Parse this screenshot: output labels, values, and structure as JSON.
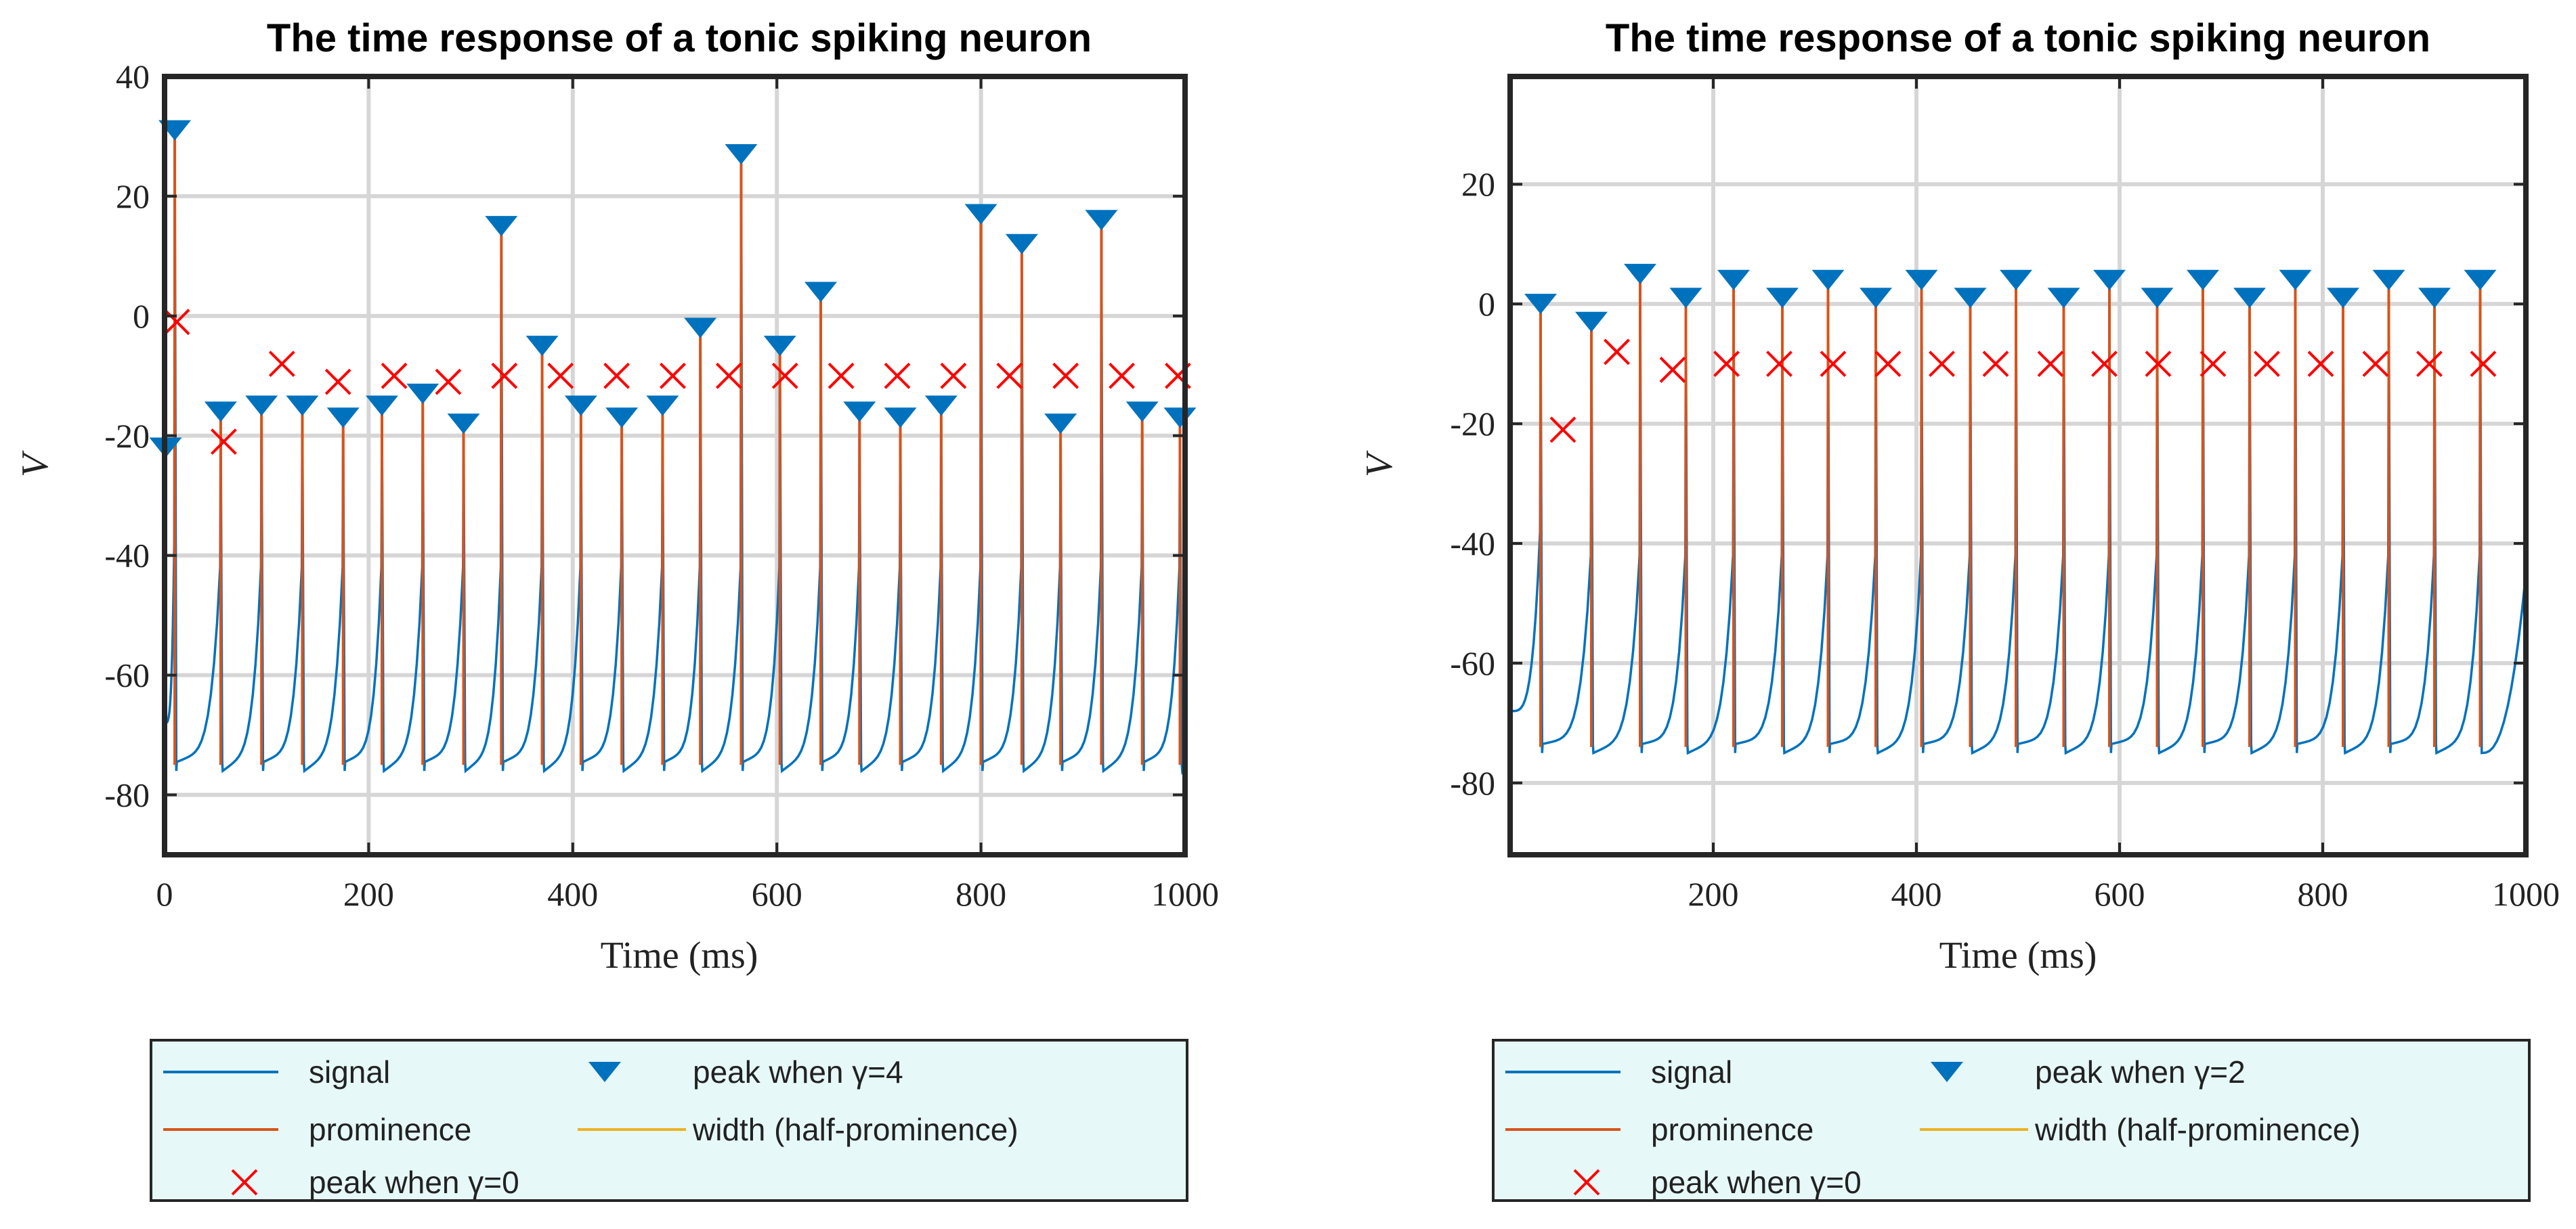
{
  "colors": {
    "signal": "#0072BD",
    "prominence": "#D95319",
    "width": "#EDB120",
    "peak_gamma0": "#FF0000",
    "peak_marker": "#0072BD",
    "legend_bg": "#E6F8F8",
    "grid": "#D6D6D6"
  },
  "chart_data": [
    {
      "type": "line",
      "title": "The time response of a tonic spiking neuron",
      "xlabel": "Time (ms)",
      "ylabel": "V",
      "xlim": [
        0,
        1000
      ],
      "ylim": [
        -90,
        40
      ],
      "xticks": [
        0,
        200,
        400,
        600,
        800,
        1000
      ],
      "yticks": [
        -80,
        -60,
        -40,
        -20,
        0,
        20,
        40
      ],
      "xtick_labels": [
        "0",
        "200",
        "400",
        "600",
        "800",
        "1000"
      ],
      "ytick_labels": [
        "-80",
        "-60",
        "-40",
        "-20",
        "0",
        "20",
        "40"
      ],
      "grid": true,
      "rest_min": -76,
      "spike_times": [
        10,
        55,
        95,
        135,
        175,
        213,
        253,
        293,
        330,
        370,
        408,
        448,
        488,
        525,
        565,
        603,
        643,
        681,
        721,
        761,
        800,
        840,
        878,
        918,
        958,
        995
      ],
      "spike_peaks": [
        31,
        -16,
        -15,
        -15,
        -17,
        -15,
        -13,
        -18,
        15,
        -5,
        -15,
        -17,
        -15,
        -2,
        27,
        -5,
        4,
        -16,
        -17,
        -15,
        17,
        12,
        -18,
        16,
        -16,
        -17
      ],
      "extra_peak_marker": {
        "t": 1,
        "v": -22
      },
      "peaks_gamma0": [
        {
          "t": 12,
          "v": -1
        },
        {
          "t": 58,
          "v": -21
        },
        {
          "t": 115,
          "v": -8
        },
        {
          "t": 170,
          "v": -11
        },
        {
          "t": 225,
          "v": -10
        },
        {
          "t": 278,
          "v": -11
        },
        {
          "t": 333,
          "v": -10
        },
        {
          "t": 388,
          "v": -10
        },
        {
          "t": 443,
          "v": -10
        },
        {
          "t": 498,
          "v": -10
        },
        {
          "t": 553,
          "v": -10
        },
        {
          "t": 608,
          "v": -10
        },
        {
          "t": 663,
          "v": -10
        },
        {
          "t": 718,
          "v": -10
        },
        {
          "t": 773,
          "v": -10
        },
        {
          "t": 828,
          "v": -10
        },
        {
          "t": 883,
          "v": -10
        },
        {
          "t": 938,
          "v": -10
        },
        {
          "t": 993,
          "v": -10
        }
      ],
      "legend": [
        "signal",
        "peak when γ=4",
        "prominence",
        "width (half-prominence)",
        "peak when γ=0"
      ],
      "legend_position": "below"
    },
    {
      "type": "line",
      "title": "The time response of a tonic spiking neuron",
      "xlabel": "Time (ms)",
      "ylabel": "V",
      "xlim": [
        0,
        1000
      ],
      "ylim": [
        -92,
        38
      ],
      "xticks": [
        200,
        400,
        600,
        800,
        1000
      ],
      "yticks": [
        -80,
        -60,
        -40,
        -20,
        0,
        20
      ],
      "xtick_labels": [
        "200",
        "400",
        "600",
        "800",
        "1000"
      ],
      "ytick_labels": [
        "-80",
        "-60",
        "-40",
        "-20",
        "0",
        "20"
      ],
      "grid": true,
      "rest_min": -75,
      "spike_times": [
        30,
        80,
        128,
        173,
        220,
        268,
        313,
        360,
        405,
        453,
        498,
        545,
        590,
        637,
        682,
        728,
        773,
        820,
        865,
        910,
        955
      ],
      "spike_peaks": [
        0,
        -3,
        5,
        1,
        4,
        1,
        4,
        1,
        4,
        1,
        4,
        1,
        4,
        1,
        4,
        1,
        4,
        1,
        4,
        1,
        4
      ],
      "peaks_gamma0": [
        {
          "t": 52,
          "v": -21
        },
        {
          "t": 105,
          "v": -8
        },
        {
          "t": 160,
          "v": -11
        },
        {
          "t": 213,
          "v": -10
        },
        {
          "t": 265,
          "v": -10
        },
        {
          "t": 318,
          "v": -10
        },
        {
          "t": 372,
          "v": -10
        },
        {
          "t": 425,
          "v": -10
        },
        {
          "t": 478,
          "v": -10
        },
        {
          "t": 532,
          "v": -10
        },
        {
          "t": 585,
          "v": -10
        },
        {
          "t": 638,
          "v": -10
        },
        {
          "t": 692,
          "v": -10
        },
        {
          "t": 745,
          "v": -10
        },
        {
          "t": 798,
          "v": -10
        },
        {
          "t": 852,
          "v": -10
        },
        {
          "t": 905,
          "v": -10
        },
        {
          "t": 958,
          "v": -10
        }
      ],
      "legend": [
        "signal",
        "peak when γ=2",
        "prominence",
        "width (half-prominence)",
        "peak when γ=0"
      ],
      "legend_position": "below"
    }
  ]
}
